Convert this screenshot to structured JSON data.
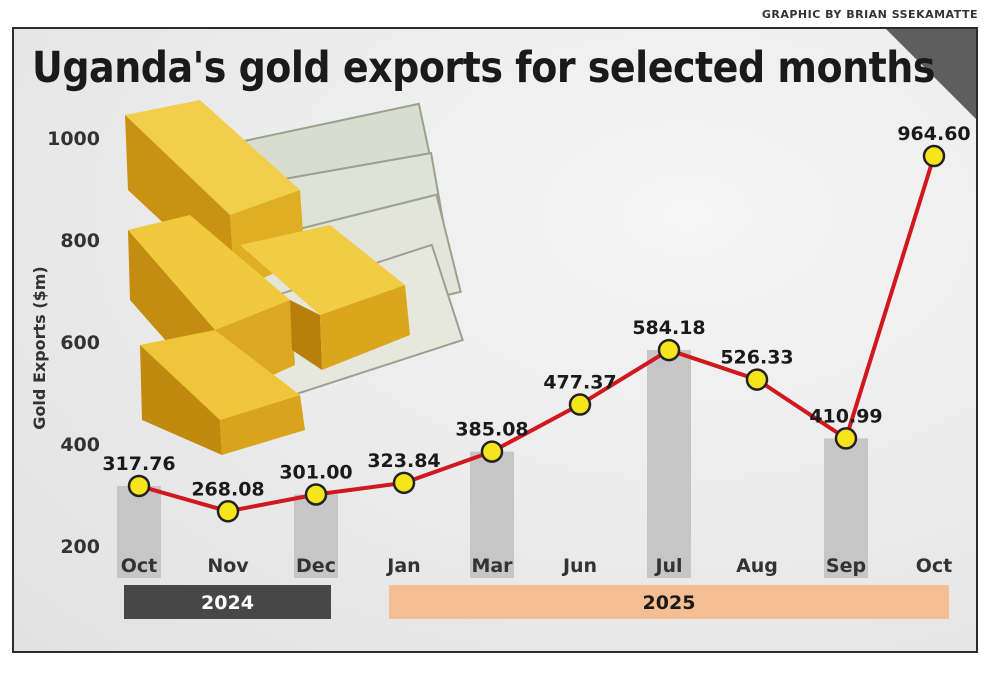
{
  "credit": "GRAPHIC BY BRIAN SSEKAMATTE",
  "chart_data": {
    "type": "line",
    "title": "Uganda's gold exports for selected months",
    "ylabel": "Gold Exports ($m)",
    "xlabel": "",
    "ylim": [
      200,
      1000
    ],
    "yticks": [
      200,
      400,
      600,
      800,
      1000
    ],
    "categories": [
      "Oct",
      "Nov",
      "Dec",
      "Jan",
      "Mar",
      "Jun",
      "Jul",
      "Aug",
      "Sep",
      "Oct"
    ],
    "values": [
      317.76,
      268.08,
      301.0,
      323.84,
      385.08,
      477.37,
      584.18,
      526.33,
      410.99,
      964.6
    ],
    "value_labels": [
      "317.76",
      "268.08",
      "301.00",
      "323.84",
      "385.08",
      "477.37",
      "584.18",
      "526.33",
      "410.99",
      "964.60"
    ],
    "highlight_bars": [
      true,
      false,
      true,
      false,
      true,
      false,
      true,
      false,
      true,
      false
    ],
    "year_groups": [
      {
        "label": "2024",
        "from": 0,
        "to": 2,
        "color": "#474747",
        "text_color": "#ffffff"
      },
      {
        "label": "2025",
        "from": 3,
        "to": 9,
        "color": "#f4be92",
        "text_color": "#1a1a1a"
      }
    ],
    "colors": {
      "line": "#d0181e",
      "marker_fill": "#f7e51c",
      "marker_stroke": "#222222",
      "bar": "#c6c6c6"
    }
  }
}
